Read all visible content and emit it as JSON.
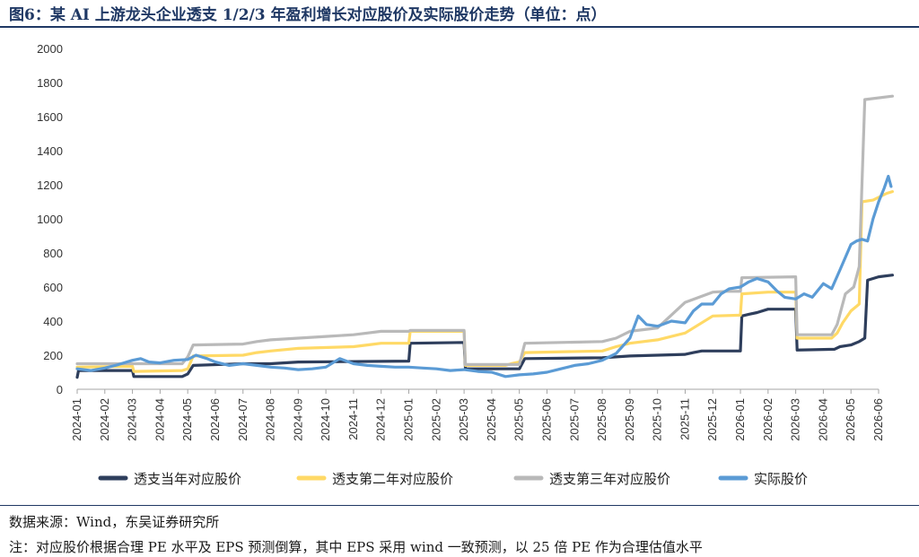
{
  "title": "图6：某 AI 上游龙头企业透支 1/2/3 年盈利增长对应股价及实际股价走势（单位：点）",
  "source": "数据来源：Wind，东吴证券研究所",
  "note": "注：对应股价根据合理 PE 水平及 EPS 预测倒算，其中 EPS 采用 wind 一致预测，以 25 倍 PE 作为合理估值水平",
  "colors": {
    "y1": "#2e3e5c",
    "y2": "#ffd966",
    "y3": "#b9b9b9",
    "actual": "#5b9bd5"
  },
  "chart_data": {
    "type": "line",
    "title": "",
    "xlabel": "",
    "ylabel": "",
    "ylim": [
      0,
      2000
    ],
    "yticks": [
      0,
      200,
      400,
      600,
      800,
      1000,
      1200,
      1400,
      1600,
      1800,
      2000
    ],
    "categories": [
      "2024-01",
      "2024-02",
      "2024-03",
      "2024-04",
      "2024-05",
      "2024-06",
      "2024-07",
      "2024-08",
      "2024-09",
      "2024-10",
      "2024-11",
      "2024-12",
      "2025-01",
      "2025-02",
      "2025-03",
      "2025-04",
      "2025-05",
      "2025-06",
      "2025-07",
      "2025-08",
      "2025-09",
      "2025-10",
      "2025-11",
      "2025-12",
      "2026-01",
      "2026-02",
      "2026-03",
      "2026-04",
      "2026-05",
      "2026-06"
    ],
    "legend_position": "bottom",
    "grid": false,
    "series": [
      {
        "name": "透支当年对应股价",
        "color": "#2e3e5c",
        "points": [
          [
            0,
            70
          ],
          [
            0.05,
            110
          ],
          [
            2,
            110
          ],
          [
            2.05,
            75
          ],
          [
            3.8,
            75
          ],
          [
            4,
            90
          ],
          [
            4.2,
            140
          ],
          [
            6,
            150
          ],
          [
            7,
            150
          ],
          [
            8,
            160
          ],
          [
            12,
            165
          ],
          [
            12.05,
            270
          ],
          [
            14,
            275
          ],
          [
            14.05,
            120
          ],
          [
            16,
            120
          ],
          [
            16.2,
            180
          ],
          [
            19,
            185
          ],
          [
            20,
            195
          ],
          [
            21,
            200
          ],
          [
            22,
            205
          ],
          [
            22.3,
            215
          ],
          [
            22.6,
            225
          ],
          [
            24,
            225
          ],
          [
            24.05,
            430
          ],
          [
            24.3,
            440
          ],
          [
            24.6,
            450
          ],
          [
            25,
            470
          ],
          [
            26,
            470
          ],
          [
            26.05,
            230
          ],
          [
            27.4,
            235
          ],
          [
            27.6,
            250
          ],
          [
            28,
            260
          ],
          [
            28.3,
            280
          ],
          [
            28.5,
            300
          ],
          [
            28.6,
            640
          ],
          [
            29,
            660
          ],
          [
            29.5,
            670
          ]
        ]
      },
      {
        "name": "透支第二年对应股价",
        "color": "#ffd966",
        "points": [
          [
            0,
            130
          ],
          [
            2,
            135
          ],
          [
            2.05,
            105
          ],
          [
            3.8,
            110
          ],
          [
            4,
            120
          ],
          [
            4.2,
            195
          ],
          [
            6,
            200
          ],
          [
            6.5,
            215
          ],
          [
            7,
            225
          ],
          [
            8,
            240
          ],
          [
            10,
            250
          ],
          [
            10.5,
            260
          ],
          [
            11,
            270
          ],
          [
            12,
            270
          ],
          [
            12.05,
            340
          ],
          [
            14,
            340
          ],
          [
            14.05,
            140
          ],
          [
            15.5,
            140
          ],
          [
            15.7,
            150
          ],
          [
            16,
            160
          ],
          [
            16.2,
            215
          ],
          [
            19,
            225
          ],
          [
            19.5,
            250
          ],
          [
            20,
            270
          ],
          [
            21,
            290
          ],
          [
            22,
            330
          ],
          [
            23,
            430
          ],
          [
            24,
            435
          ],
          [
            24.05,
            560
          ],
          [
            25,
            570
          ],
          [
            26,
            570
          ],
          [
            26.05,
            300
          ],
          [
            27.3,
            300
          ],
          [
            27.5,
            330
          ],
          [
            27.7,
            390
          ],
          [
            28,
            460
          ],
          [
            28.3,
            500
          ],
          [
            28.4,
            1100
          ],
          [
            28.8,
            1110
          ],
          [
            29.3,
            1150
          ],
          [
            29.5,
            1160
          ]
        ]
      },
      {
        "name": "透支第三年对应股价",
        "color": "#b9b9b9",
        "points": [
          [
            0,
            150
          ],
          [
            2,
            150
          ],
          [
            2.05,
            150
          ],
          [
            3.8,
            150
          ],
          [
            4,
            190
          ],
          [
            4.2,
            260
          ],
          [
            6,
            265
          ],
          [
            6.5,
            280
          ],
          [
            7,
            290
          ],
          [
            8,
            300
          ],
          [
            9,
            310
          ],
          [
            10,
            320
          ],
          [
            10.5,
            330
          ],
          [
            11,
            340
          ],
          [
            12,
            340
          ],
          [
            12.05,
            345
          ],
          [
            14,
            345
          ],
          [
            14.05,
            145
          ],
          [
            16,
            145
          ],
          [
            16.2,
            270
          ],
          [
            19,
            280
          ],
          [
            19.5,
            300
          ],
          [
            20,
            340
          ],
          [
            21,
            360
          ],
          [
            22,
            510
          ],
          [
            23,
            570
          ],
          [
            23.5,
            575
          ],
          [
            24,
            575
          ],
          [
            24.05,
            655
          ],
          [
            26,
            660
          ],
          [
            26.05,
            320
          ],
          [
            27.3,
            320
          ],
          [
            27.5,
            380
          ],
          [
            27.8,
            560
          ],
          [
            28.1,
            600
          ],
          [
            28.3,
            720
          ],
          [
            28.5,
            1700
          ],
          [
            29.5,
            1720
          ]
        ]
      },
      {
        "name": "实际股价",
        "color": "#5b9bd5",
        "points": [
          [
            0,
            120
          ],
          [
            0.5,
            110
          ],
          [
            1,
            125
          ],
          [
            1.5,
            145
          ],
          [
            2,
            170
          ],
          [
            2.3,
            180
          ],
          [
            2.6,
            160
          ],
          [
            3,
            155
          ],
          [
            3.5,
            170
          ],
          [
            4,
            175
          ],
          [
            4.3,
            200
          ],
          [
            4.7,
            180
          ],
          [
            5,
            160
          ],
          [
            5.5,
            140
          ],
          [
            6,
            150
          ],
          [
            6.5,
            140
          ],
          [
            7,
            130
          ],
          [
            7.5,
            125
          ],
          [
            8,
            115
          ],
          [
            8.5,
            120
          ],
          [
            9,
            130
          ],
          [
            9.5,
            180
          ],
          [
            10,
            150
          ],
          [
            10.5,
            140
          ],
          [
            11,
            135
          ],
          [
            11.5,
            130
          ],
          [
            12,
            130
          ],
          [
            12.5,
            125
          ],
          [
            13,
            120
          ],
          [
            13.5,
            110
          ],
          [
            14,
            115
          ],
          [
            14.5,
            105
          ],
          [
            15,
            100
          ],
          [
            15.5,
            75
          ],
          [
            16,
            85
          ],
          [
            16.5,
            90
          ],
          [
            17,
            100
          ],
          [
            17.5,
            120
          ],
          [
            18,
            140
          ],
          [
            18.5,
            150
          ],
          [
            19,
            170
          ],
          [
            19.5,
            210
          ],
          [
            20,
            300
          ],
          [
            20.3,
            430
          ],
          [
            20.6,
            380
          ],
          [
            21,
            370
          ],
          [
            21.5,
            400
          ],
          [
            22,
            390
          ],
          [
            22.3,
            460
          ],
          [
            22.6,
            500
          ],
          [
            23,
            500
          ],
          [
            23.3,
            560
          ],
          [
            23.6,
            590
          ],
          [
            24,
            600
          ],
          [
            24.3,
            630
          ],
          [
            24.6,
            650
          ],
          [
            25,
            630
          ],
          [
            25.3,
            580
          ],
          [
            25.6,
            540
          ],
          [
            26,
            530
          ],
          [
            26.3,
            560
          ],
          [
            26.6,
            540
          ],
          [
            27,
            620
          ],
          [
            27.3,
            590
          ],
          [
            27.6,
            700
          ],
          [
            28,
            850
          ],
          [
            28.2,
            870
          ],
          [
            28.4,
            880
          ],
          [
            28.6,
            870
          ],
          [
            28.8,
            1000
          ],
          [
            29,
            1100
          ],
          [
            29.2,
            1180
          ],
          [
            29.35,
            1250
          ],
          [
            29.45,
            1190
          ]
        ]
      }
    ]
  }
}
